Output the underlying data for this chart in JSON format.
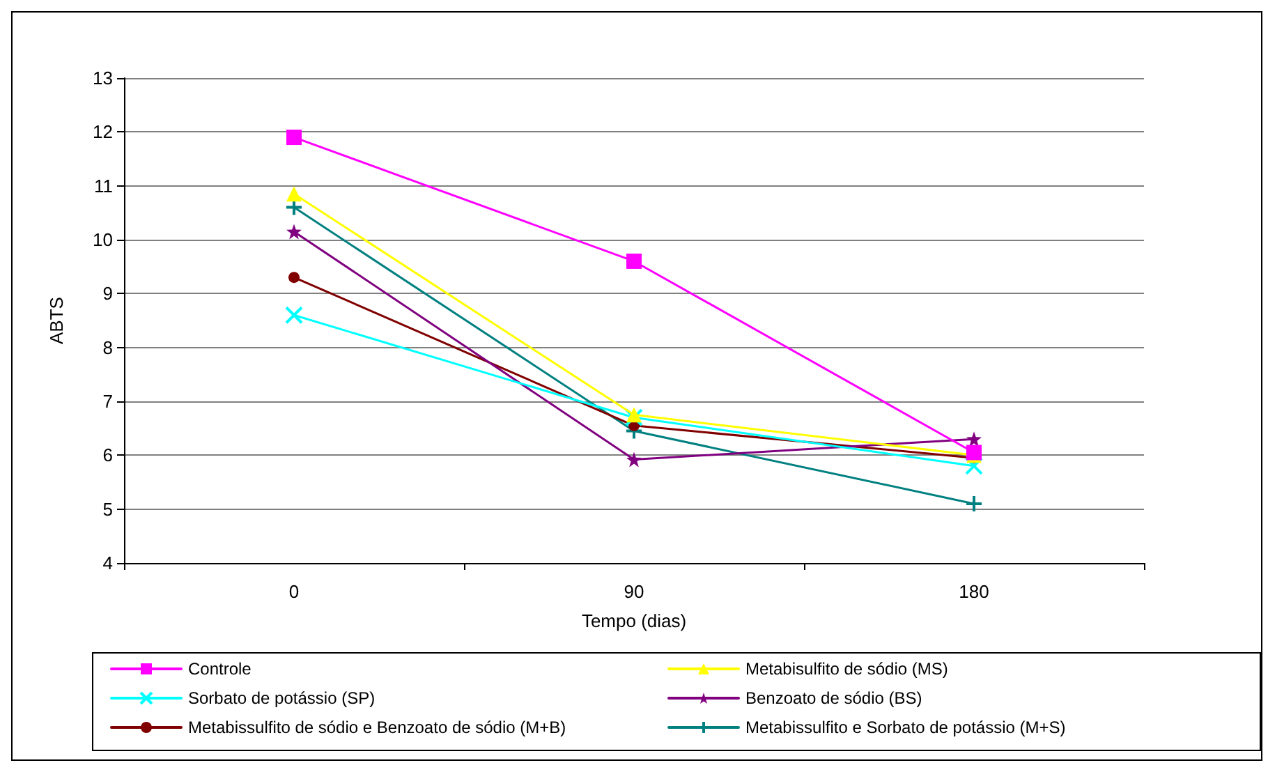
{
  "chart_data": {
    "type": "line",
    "xlabel": "Tempo (dias)",
    "ylabel": "ABTS",
    "categories": [
      "0",
      "90",
      "180"
    ],
    "series": [
      {
        "name": "Controle",
        "color": "#ff00ff",
        "marker": "square",
        "values": [
          11.9,
          9.6,
          6.05
        ]
      },
      {
        "name": "Metabisulfito de sódio (MS)",
        "color": "#ffff00",
        "marker": "triangle",
        "values": [
          10.85,
          6.75,
          6.0
        ]
      },
      {
        "name": "Sorbato de potássio (SP)",
        "color": "#00ffff",
        "marker": "cross",
        "values": [
          8.6,
          6.7,
          5.8
        ]
      },
      {
        "name": "Benzoato de sódio (BS)",
        "color": "#800080",
        "marker": "star",
        "values": [
          10.15,
          5.92,
          6.3
        ]
      },
      {
        "name": "Metabissulfito de sódio e Benzoato de sódio (M+B)",
        "color": "#800000",
        "marker": "circle",
        "values": [
          9.3,
          6.55,
          5.95
        ]
      },
      {
        "name": "Metabissulfito e Sorbato de potássio (M+S)",
        "color": "#008080",
        "marker": "plus",
        "values": [
          10.6,
          6.45,
          5.1
        ]
      }
    ],
    "ylim": [
      4,
      13
    ],
    "yticks": [
      4,
      5,
      6,
      7,
      8,
      9,
      10,
      11,
      12,
      13
    ],
    "grid": "y",
    "legend": "bottom",
    "line_style": "solid"
  }
}
